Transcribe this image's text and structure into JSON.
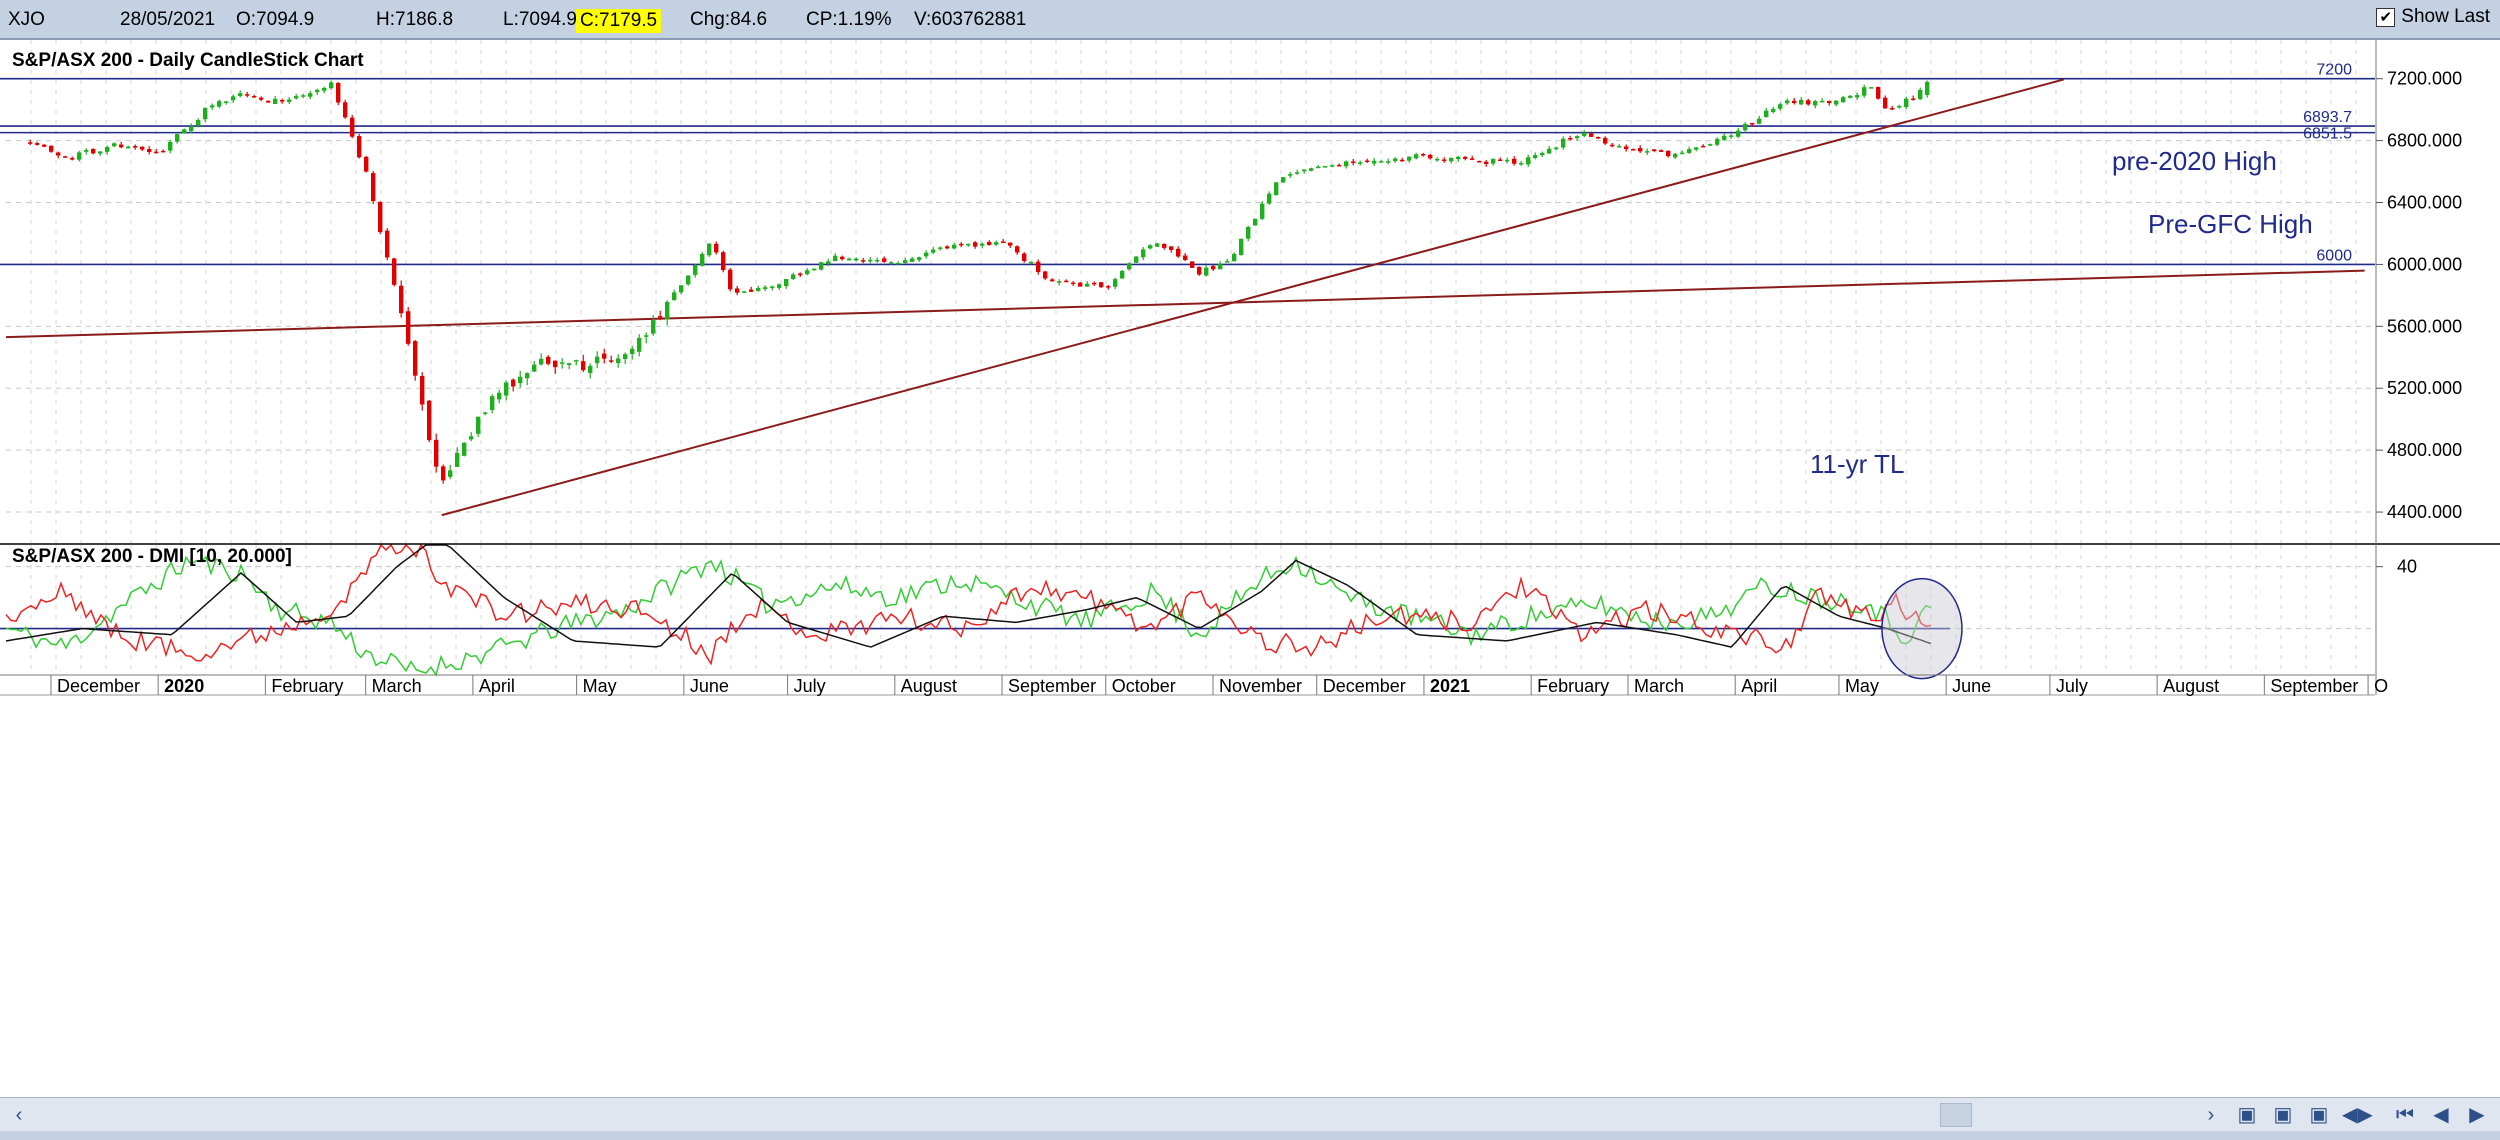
{
  "header": {
    "symbol": "XJO",
    "date": "28/05/2021",
    "open": "O:7094.9",
    "high": "H:7186.8",
    "low": "L:7094.9",
    "close": "C:7179.5",
    "change": "Chg:84.6",
    "change_pct": "CP:1.19%",
    "volume": "V:603762881",
    "show_last_label": "Show Last",
    "show_last_checked": true
  },
  "colors": {
    "up": "#1fae1f",
    "down": "#e00000",
    "hline": "#1f2a8a",
    "trendline": "#8b1a1a",
    "dmi_plus": "#33cc33",
    "dmi_minus": "#ee2222",
    "adx": "#111111",
    "panel_bg": "#ffffff",
    "header_bg": "#c3d1e3",
    "highlight": "#ffff00"
  },
  "chart_data": [
    {
      "type": "candlestick",
      "title": "S&P/ASX 200 - Daily CandleStick Chart",
      "ylim": [
        4200,
        7450
      ],
      "y_ticks": [
        4400,
        4800,
        5200,
        5600,
        6000,
        6400,
        6800,
        7200
      ],
      "y_tick_labels": [
        "4400.000",
        "4800.000",
        "5200.000",
        "5600.000",
        "6000.000",
        "6400.000",
        "6800.000",
        "7200.000"
      ],
      "grid": true,
      "x_months": [
        "December",
        "2020",
        "February",
        "March",
        "April",
        "May",
        "June",
        "July",
        "August",
        "September",
        "October",
        "November",
        "December",
        "2021",
        "February",
        "March",
        "April",
        "May",
        "June",
        "July",
        "August",
        "September",
        "O"
      ],
      "price_path": [
        [
          "2019-11-25",
          6800
        ],
        [
          "2019-12-05",
          6680
        ],
        [
          "2019-12-20",
          6780
        ],
        [
          "2019-12-31",
          6700
        ],
        [
          "2020-01-15",
          7000
        ],
        [
          "2020-01-25",
          7100
        ],
        [
          "2020-02-05",
          7050
        ],
        [
          "2020-02-20",
          7160
        ],
        [
          "2020-03-01",
          6600
        ],
        [
          "2020-03-12",
          5600
        ],
        [
          "2020-03-23",
          4550
        ],
        [
          "2020-04-05",
          5100
        ],
        [
          "2020-04-20",
          5400
        ],
        [
          "2020-05-01",
          5350
        ],
        [
          "2020-05-15",
          5400
        ],
        [
          "2020-06-01",
          5900
        ],
        [
          "2020-06-09",
          6150
        ],
        [
          "2020-06-15",
          5800
        ],
        [
          "2020-07-01",
          5900
        ],
        [
          "2020-07-15",
          6050
        ],
        [
          "2020-08-01",
          6000
        ],
        [
          "2020-08-15",
          6100
        ],
        [
          "2020-09-01",
          6150
        ],
        [
          "2020-09-15",
          5900
        ],
        [
          "2020-10-01",
          5850
        ],
        [
          "2020-10-15",
          6150
        ],
        [
          "2020-10-28",
          5950
        ],
        [
          "2020-11-05",
          6000
        ],
        [
          "2020-11-20",
          6550
        ],
        [
          "2020-12-01",
          6650
        ],
        [
          "2020-12-15",
          6650
        ],
        [
          "2021-01-01",
          6700
        ],
        [
          "2021-01-29",
          6650
        ],
        [
          "2021-02-15",
          6850
        ],
        [
          "2021-03-01",
          6750
        ],
        [
          "2021-03-15",
          6700
        ],
        [
          "2021-04-01",
          6850
        ],
        [
          "2021-04-15",
          7050
        ],
        [
          "2021-05-01",
          7050
        ],
        [
          "2021-05-10",
          7150
        ],
        [
          "2021-05-15",
          7000
        ],
        [
          "2021-05-20",
          7050
        ],
        [
          "2021-05-28",
          7179.5
        ]
      ],
      "horizontal_lines": [
        {
          "value": 7200,
          "label": "7200"
        },
        {
          "value": 6893.7,
          "label": "6893.7"
        },
        {
          "value": 6851.5,
          "label": "6851.5"
        },
        {
          "value": 6000,
          "label": "6000"
        }
      ],
      "trendlines": [
        {
          "from": [
            "2020-03-23",
            4380
          ],
          "to": [
            "2021-07-05",
            7195
          ]
        },
        {
          "from": [
            "2019-11-18",
            5530
          ],
          "to": [
            "2021-09-30",
            5960
          ]
        }
      ],
      "annotations": [
        "pre-2020 High",
        "Pre-GFC High",
        "11-yr TL"
      ]
    },
    {
      "type": "line",
      "title": "S&P/ASX 200 - DMI [10, 20.000]",
      "ylim": [
        5,
        47
      ],
      "y_ticks": [
        40
      ],
      "y_tick_labels": [
        "40"
      ],
      "threshold": 20,
      "series": [
        {
          "role": "+DI",
          "points": [
            [
              "2019-11-18",
              20
            ],
            [
              "2019-12-05",
              14
            ],
            [
              "2019-12-25",
              30
            ],
            [
              "2020-01-10",
              42
            ],
            [
              "2020-01-25",
              38
            ],
            [
              "2020-02-05",
              26
            ],
            [
              "2020-02-20",
              22
            ],
            [
              "2020-03-01",
              12
            ],
            [
              "2020-03-15",
              6
            ],
            [
              "2020-04-05",
              12
            ],
            [
              "2020-04-25",
              20
            ],
            [
              "2020-05-15",
              26
            ],
            [
              "2020-06-09",
              42
            ],
            [
              "2020-06-25",
              28
            ],
            [
              "2020-07-15",
              34
            ],
            [
              "2020-08-01",
              30
            ],
            [
              "2020-08-20",
              36
            ],
            [
              "2020-09-10",
              28
            ],
            [
              "2020-09-25",
              22
            ],
            [
              "2020-10-15",
              32
            ],
            [
              "2020-10-28",
              18
            ],
            [
              "2020-11-15",
              36
            ],
            [
              "2020-11-25",
              42
            ],
            [
              "2020-12-10",
              30
            ],
            [
              "2020-12-28",
              24
            ],
            [
              "2021-01-15",
              18
            ],
            [
              "2021-02-01",
              24
            ],
            [
              "2021-02-20",
              28
            ],
            [
              "2021-03-10",
              22
            ],
            [
              "2021-03-25",
              24
            ],
            [
              "2021-04-10",
              34
            ],
            [
              "2021-04-25",
              30
            ],
            [
              "2021-05-10",
              28
            ],
            [
              "2021-05-20",
              17
            ],
            [
              "2021-05-28",
              28
            ]
          ]
        },
        {
          "role": "-DI",
          "points": [
            [
              "2019-11-18",
              22
            ],
            [
              "2019-12-05",
              32
            ],
            [
              "2019-12-20",
              18
            ],
            [
              "2020-01-10",
              12
            ],
            [
              "2020-01-25",
              16
            ],
            [
              "2020-02-10",
              22
            ],
            [
              "2020-02-25",
              30
            ],
            [
              "2020-03-05",
              46
            ],
            [
              "2020-03-15",
              47
            ],
            [
              "2020-03-25",
              34
            ],
            [
              "2020-04-10",
              24
            ],
            [
              "2020-05-01",
              28
            ],
            [
              "2020-05-20",
              26
            ],
            [
              "2020-06-09",
              12
            ],
            [
              "2020-06-20",
              28
            ],
            [
              "2020-07-10",
              18
            ],
            [
              "2020-08-01",
              24
            ],
            [
              "2020-08-20",
              20
            ],
            [
              "2020-09-10",
              34
            ],
            [
              "2020-09-25",
              30
            ],
            [
              "2020-10-15",
              20
            ],
            [
              "2020-10-28",
              32
            ],
            [
              "2020-11-15",
              16
            ],
            [
              "2020-12-01",
              14
            ],
            [
              "2020-12-20",
              24
            ],
            [
              "2021-01-15",
              22
            ],
            [
              "2021-01-29",
              34
            ],
            [
              "2021-02-15",
              18
            ],
            [
              "2021-03-05",
              26
            ],
            [
              "2021-03-20",
              22
            ],
            [
              "2021-04-15",
              14
            ],
            [
              "2021-04-25",
              30
            ],
            [
              "2021-05-10",
              24
            ],
            [
              "2021-05-18",
              28
            ],
            [
              "2021-05-28",
              18
            ]
          ]
        },
        {
          "role": "ADX",
          "points": [
            [
              "2019-11-18",
              16
            ],
            [
              "2019-12-10",
              20
            ],
            [
              "2020-01-05",
              18
            ],
            [
              "2020-01-25",
              38
            ],
            [
              "2020-02-10",
              22
            ],
            [
              "2020-02-25",
              24
            ],
            [
              "2020-03-10",
              40
            ],
            [
              "2020-03-22",
              50
            ],
            [
              "2020-04-10",
              30
            ],
            [
              "2020-04-30",
              16
            ],
            [
              "2020-05-25",
              14
            ],
            [
              "2020-06-15",
              38
            ],
            [
              "2020-07-01",
              22
            ],
            [
              "2020-07-25",
              14
            ],
            [
              "2020-08-15",
              24
            ],
            [
              "2020-09-05",
              22
            ],
            [
              "2020-09-25",
              26
            ],
            [
              "2020-10-10",
              30
            ],
            [
              "2020-10-28",
              20
            ],
            [
              "2020-11-15",
              32
            ],
            [
              "2020-11-25",
              42
            ],
            [
              "2020-12-10",
              34
            ],
            [
              "2020-12-30",
              18
            ],
            [
              "2021-01-25",
              16
            ],
            [
              "2021-02-20",
              22
            ],
            [
              "2021-03-15",
              18
            ],
            [
              "2021-03-31",
              14
            ],
            [
              "2021-04-15",
              34
            ],
            [
              "2021-05-01",
              24
            ],
            [
              "2021-05-15",
              20
            ],
            [
              "2021-05-28",
              15
            ]
          ]
        }
      ],
      "highlight_circle_at": [
        "2021-05-25",
        20
      ]
    }
  ]
}
